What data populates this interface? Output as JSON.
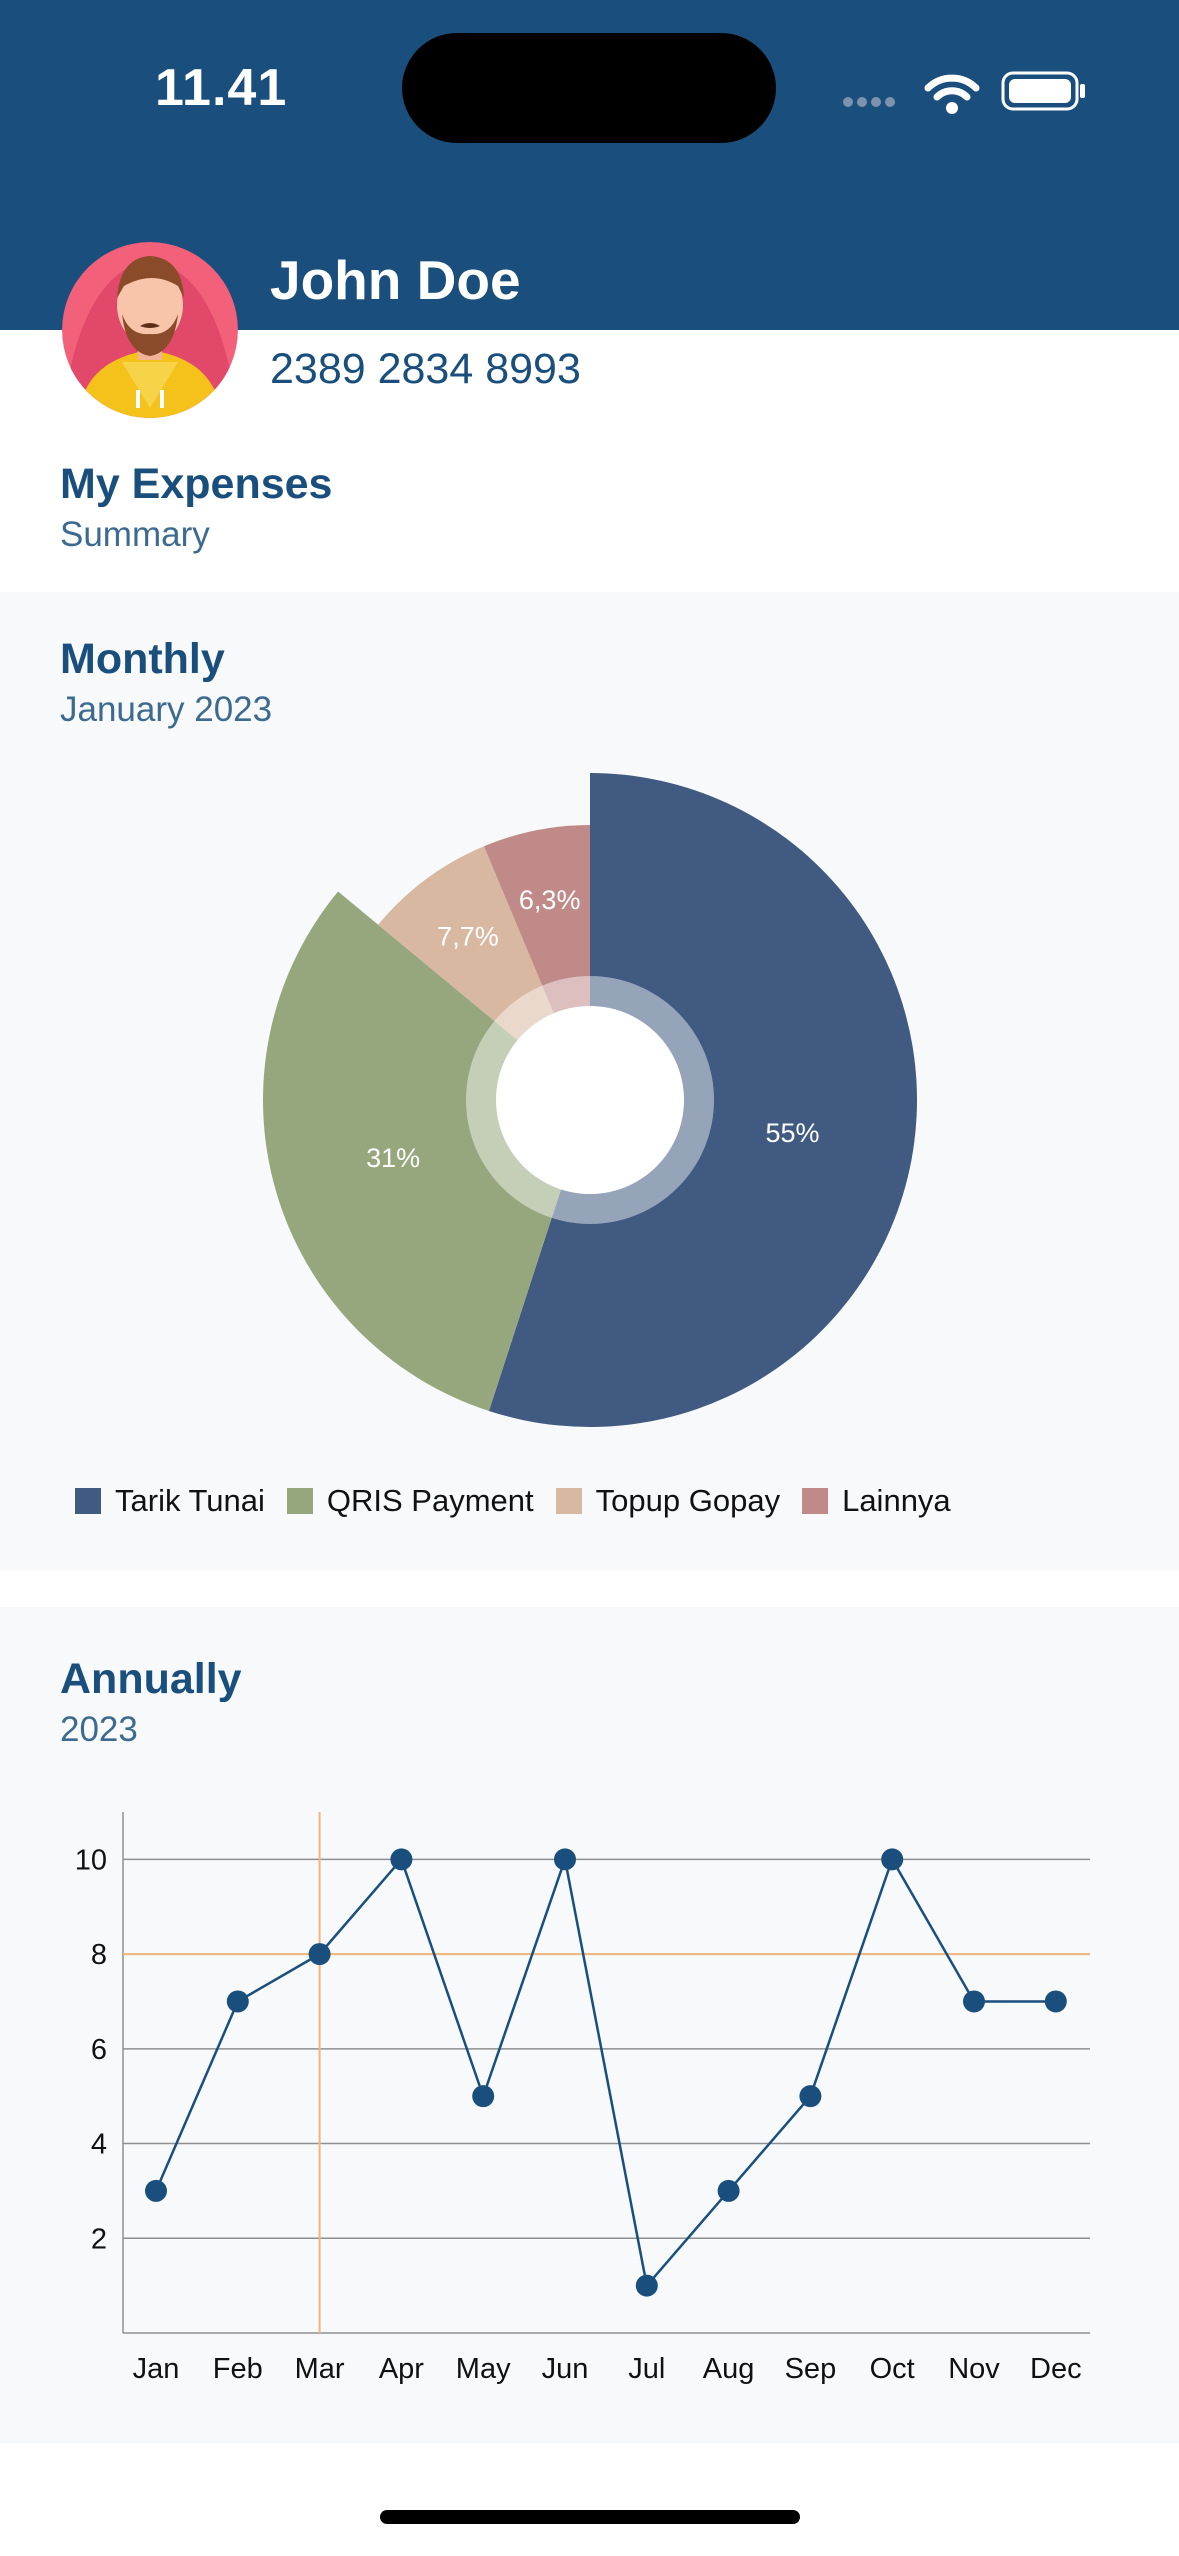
{
  "status_bar": {
    "time": "11.41"
  },
  "profile": {
    "name": "John Doe",
    "account_number": "2389 2834 8993"
  },
  "section": {
    "title": "My Expenses",
    "subtitle": "Summary"
  },
  "monthly": {
    "title": "Monthly",
    "period": "January 2023"
  },
  "annually": {
    "title": "Annually",
    "period": "2023"
  },
  "chart_data": [
    {
      "type": "pie",
      "slices": [
        {
          "label": "Tarik Tunai",
          "value": 55,
          "display": "55%",
          "color": "#415a82"
        },
        {
          "label": "QRIS Payment",
          "value": 31,
          "display": "31%",
          "color": "#96a77d"
        },
        {
          "label": "Topup Gopay",
          "value": 7.7,
          "display": "7,7%",
          "color": "#d9b8a2"
        },
        {
          "label": "Lainnya",
          "value": 6.3,
          "display": "6,3%",
          "color": "#c08a89"
        }
      ],
      "legend": "bottom"
    },
    {
      "type": "line",
      "categories": [
        "Jan",
        "Feb",
        "Mar",
        "Apr",
        "May",
        "Jun",
        "Jul",
        "Aug",
        "Sep",
        "Oct",
        "Nov",
        "Dec"
      ],
      "series": [
        {
          "values": [
            3,
            7,
            8,
            10,
            5,
            10,
            1,
            3,
            5,
            10,
            7,
            7
          ]
        }
      ],
      "ylim": [
        0,
        11
      ],
      "yticks": [
        2,
        4,
        6,
        8,
        10
      ],
      "grid": true,
      "highlight": {
        "category": "Mar",
        "value": 8
      },
      "color": "#1a4f7d"
    }
  ]
}
